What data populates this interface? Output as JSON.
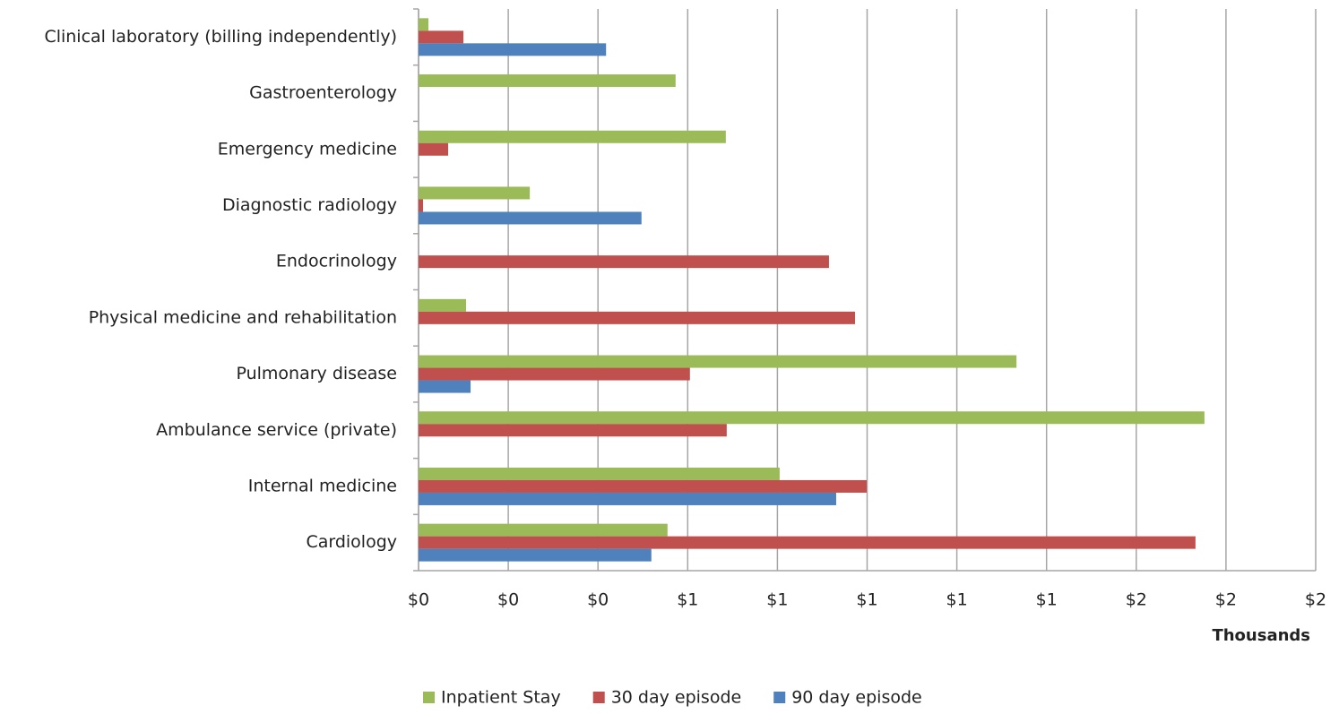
{
  "chart_data": {
    "type": "hbar",
    "x_label": "Thousands",
    "categories": [
      "Clinical laboratory (billing independently)",
      "Gastroenterology",
      "Emergency medicine",
      "Diagnostic radiology",
      "Endocrinology",
      "Physical medicine and rehabilitation",
      "Pulmonary disease",
      "Ambulance service (private)",
      "Internal medicine",
      "Cardiology"
    ],
    "series": [
      {
        "name": "Inpatient Stay",
        "color": "#9bbb59",
        "values": [
          0.022,
          0.573,
          0.685,
          0.248,
          null,
          0.106,
          1.333,
          1.752,
          0.805,
          0.555
        ]
      },
      {
        "name": "30 day episode",
        "color": "#c0504d",
        "values": [
          0.1,
          null,
          0.066,
          0.01,
          0.915,
          0.973,
          0.605,
          0.687,
          0.999,
          1.732
        ]
      },
      {
        "name": "90 day episode",
        "color": "#4f81bd",
        "values": [
          0.418,
          null,
          null,
          0.497,
          null,
          null,
          0.116,
          null,
          0.931,
          0.519
        ]
      }
    ],
    "xlim": [
      0,
      2
    ],
    "xticks": [
      {
        "value": 0,
        "label": "$0"
      },
      {
        "value": 0.2,
        "label": "$0"
      },
      {
        "value": 0.4,
        "label": "$0"
      },
      {
        "value": 0.6,
        "label": "$1"
      },
      {
        "value": 0.8,
        "label": "$1"
      },
      {
        "value": 1.0,
        "label": "$1"
      },
      {
        "value": 1.2,
        "label": "$1"
      },
      {
        "value": 1.4,
        "label": "$1"
      },
      {
        "value": 1.6,
        "label": "$2"
      },
      {
        "value": 1.8,
        "label": "$2"
      },
      {
        "value": 2.0,
        "label": "$2"
      }
    ],
    "grid": true,
    "legend": "bottom"
  }
}
